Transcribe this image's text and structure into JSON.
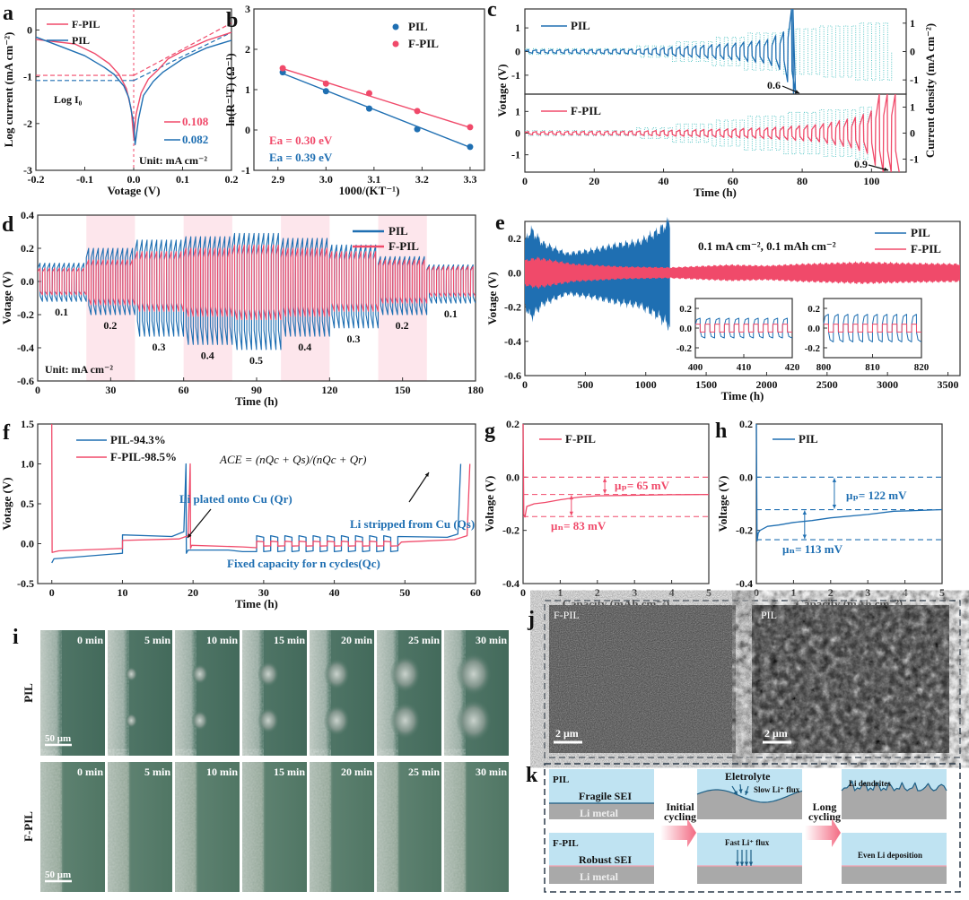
{
  "colors": {
    "pil": "#1f6fb2",
    "fpil": "#f04a6a",
    "current": "#2fb8b8",
    "band": "#fde6ec",
    "elec": "#bfe3f2",
    "metal": "#a9a9a9"
  },
  "panel_labels": {
    "a": "a",
    "b": "b",
    "c": "c",
    "d": "d",
    "e": "e",
    "f": "f",
    "g": "g",
    "h": "h",
    "i": "i",
    "j": "j",
    "k": "k"
  },
  "chart_data": [
    {
      "id": "a",
      "type": "line",
      "xlabel": "Votage (V)",
      "ylabel": "Log current (mA cm⁻²)",
      "xlim": [
        -0.2,
        0.2
      ],
      "ylim": [
        -3,
        0.45
      ],
      "xticks": [
        "-0.2",
        "-0.1",
        "0.0",
        "0.1",
        "0.2"
      ],
      "yticks": [
        "-3",
        "-2",
        "-1",
        "0"
      ],
      "legend": [
        "F-PIL",
        "PIL"
      ],
      "series": [
        {
          "name": "F-PIL",
          "x": [
            -0.2,
            -0.16,
            -0.12,
            -0.08,
            -0.05,
            -0.03,
            -0.015,
            -0.005,
            0.0,
            0.005,
            0.015,
            0.03,
            0.05,
            0.07,
            0.1,
            0.15,
            0.2
          ],
          "y": [
            -0.2,
            -0.25,
            -0.3,
            -0.5,
            -0.72,
            -0.95,
            -1.25,
            -1.7,
            -2.3,
            -1.8,
            -1.35,
            -1.05,
            -0.85,
            -0.62,
            -0.45,
            -0.22,
            -0.05
          ]
        },
        {
          "name": "PIL",
          "x": [
            -0.2,
            -0.15,
            -0.1,
            -0.06,
            -0.04,
            -0.02,
            -0.01,
            0.0,
            0.003,
            0.01,
            0.02,
            0.04,
            0.06,
            0.1,
            0.15,
            0.2
          ],
          "y": [
            -0.15,
            -0.35,
            -0.55,
            -0.8,
            -0.95,
            -1.2,
            -1.45,
            -2.0,
            -2.45,
            -1.9,
            -1.4,
            -1.1,
            -0.9,
            -0.62,
            -0.38,
            -0.22
          ]
        }
      ],
      "tafel": [
        {
          "name": "F-PIL",
          "log_i0": -0.97,
          "anodic_end": 0.15
        },
        {
          "name": "PIL",
          "log_i0": -1.08,
          "anodic_end": -0.05
        }
      ],
      "annotations": {
        "log_i0": "Log I₀",
        "fpil_value": "0.108",
        "pil_value": "0.082",
        "unit": "Unit: mA cm⁻²"
      }
    },
    {
      "id": "b",
      "type": "scatter",
      "xlabel": "1000/(KT⁻¹)",
      "ylabel": "ln(R⁻¹T) (Ω⁻¹)",
      "xlim": [
        2.85,
        3.33
      ],
      "ylim": [
        -1,
        3
      ],
      "xticks": [
        "2.9",
        "3.0",
        "3.1",
        "3.2",
        "3.3"
      ],
      "yticks": [
        "-1",
        "0",
        "1",
        "2",
        "3"
      ],
      "x": [
        2.91,
        3.0,
        3.09,
        3.19,
        3.3
      ],
      "series": [
        {
          "name": "PIL",
          "values": [
            1.43,
            0.96,
            0.53,
            0.02,
            -0.42
          ],
          "fit": [
            1.4,
            -0.43
          ]
        },
        {
          "name": "F-PIL",
          "values": [
            1.53,
            1.15,
            0.91,
            0.47,
            0.07
          ],
          "fit": [
            1.52,
            0.06
          ]
        }
      ],
      "annotations": {
        "ea_fpil": "Ea = 0.30 eV",
        "ea_pil": "Ea = 0.39 eV"
      }
    },
    {
      "id": "c",
      "type": "line",
      "xlabel": "Time (h)",
      "ylabel": "Votage (V)",
      "ylabel_right": "Current density (mA cm⁻²)",
      "xlim": [
        0,
        110
      ],
      "ylim": [
        -1.8,
        1.8
      ],
      "ylim_right": [
        -1.5,
        1.5
      ],
      "xticks": [
        "0",
        "20",
        "40",
        "60",
        "80",
        "100"
      ],
      "yticks": [
        "-1",
        "0",
        "1"
      ],
      "yticks_right": [
        "-1",
        "0",
        "1"
      ],
      "period_h": 2.3,
      "current_steps": [
        [
          0,
          0.1
        ],
        [
          32,
          0.2
        ],
        [
          42,
          0.35
        ],
        [
          53,
          0.5
        ],
        [
          63,
          0.65
        ],
        [
          74,
          0.8
        ],
        [
          84,
          0.9
        ],
        [
          95,
          1.0
        ]
      ],
      "series": [
        {
          "name": "PIL",
          "end_h": 77.3,
          "current_end_h": 105,
          "envelope": [
            [
              0,
              0.07
            ],
            [
              32,
              0.1
            ],
            [
              40,
              0.17
            ],
            [
              50,
              0.25
            ],
            [
              60,
              0.35
            ],
            [
              70,
              0.5
            ],
            [
              75,
              0.85
            ],
            [
              77,
              1.8
            ]
          ]
        },
        {
          "name": "F-PIL",
          "end_h": 108,
          "current_end_h": 100,
          "envelope": [
            [
              0,
              0.07
            ],
            [
              32,
              0.1
            ],
            [
              50,
              0.16
            ],
            [
              70,
              0.25
            ],
            [
              85,
              0.4
            ],
            [
              95,
              0.7
            ],
            [
              100,
              1.0
            ],
            [
              102,
              1.8
            ],
            [
              108,
              1.8
            ]
          ]
        }
      ],
      "annotations": {
        "pil_fail": "0.6",
        "fpil_fail": "0.9"
      }
    },
    {
      "id": "d",
      "type": "line",
      "xlabel": "Time (h)",
      "ylabel": "Votage (V)",
      "xlim": [
        0,
        180
      ],
      "ylim": [
        -0.6,
        0.4
      ],
      "xticks": [
        "0",
        "30",
        "60",
        "90",
        "120",
        "150",
        "180"
      ],
      "yticks": [
        "-0.6",
        "-0.4",
        "-0.2",
        "0.0",
        "0.2",
        "0.4"
      ],
      "legend": [
        "PIL",
        "F-PIL"
      ],
      "rates": [
        "0.1",
        "0.2",
        "0.3",
        "0.4",
        "0.5",
        "0.4",
        "0.3",
        "0.2",
        "0.1"
      ],
      "segment_h": 20,
      "shaded_segments": [
        1,
        3,
        5,
        7
      ],
      "series": [
        {
          "name": "PIL",
          "upper": [
            0.11,
            0.2,
            0.25,
            0.27,
            0.29,
            0.26,
            0.22,
            0.15,
            0.1
          ],
          "lower": [
            -0.12,
            -0.2,
            -0.33,
            -0.38,
            -0.41,
            -0.33,
            -0.28,
            -0.2,
            -0.13
          ]
        },
        {
          "name": "F-PIL",
          "upper": [
            0.08,
            0.13,
            0.18,
            0.2,
            0.22,
            0.2,
            0.18,
            0.13,
            0.09
          ],
          "lower": [
            -0.08,
            -0.14,
            -0.18,
            -0.21,
            -0.23,
            -0.21,
            -0.18,
            -0.13,
            -0.09
          ]
        }
      ],
      "annotations": {
        "unit": "Unit: mA cm⁻²"
      }
    },
    {
      "id": "e",
      "type": "area",
      "xlabel": "Time (h)",
      "ylabel": "Votage (V)",
      "xlim": [
        0,
        3600
      ],
      "ylim": [
        -0.6,
        0.3
      ],
      "xticks": [
        "0",
        "500",
        "1000",
        "1500",
        "2000",
        "2500",
        "3000",
        "3500"
      ],
      "yticks": [
        "-0.6",
        "-0.4",
        "-0.2",
        "0.0",
        "0.2"
      ],
      "legend": [
        "PIL",
        "F-PIL"
      ],
      "condition": "0.1 mA cm⁻², 0.1 mAh cm⁻²",
      "series": [
        {
          "name": "PIL",
          "envelope": [
            [
              0,
              0.18
            ],
            [
              50,
              0.25
            ],
            [
              150,
              0.17
            ],
            [
              350,
              0.11
            ],
            [
              550,
              0.13
            ],
            [
              750,
              0.16
            ],
            [
              950,
              0.18
            ],
            [
              1100,
              0.24
            ],
            [
              1200,
              0.3
            ]
          ]
        },
        {
          "name": "F-PIL",
          "envelope": [
            [
              0,
              0.07
            ],
            [
              100,
              0.085
            ],
            [
              400,
              0.05
            ],
            [
              800,
              0.035
            ],
            [
              1200,
              0.03
            ],
            [
              1700,
              0.045
            ],
            [
              2000,
              0.04
            ],
            [
              2300,
              0.05
            ],
            [
              2800,
              0.06
            ],
            [
              3100,
              0.055
            ],
            [
              3600,
              0.05
            ]
          ]
        }
      ],
      "insets": [
        {
          "xlim": [
            400,
            420
          ],
          "ylim": [
            -0.3,
            0.3
          ],
          "xticks": [
            "400",
            "410",
            "420"
          ],
          "yticks": [
            "-0.2",
            "0.0",
            "0.2"
          ],
          "pil_amp": 0.1,
          "fpil_amp": 0.04
        },
        {
          "xlim": [
            800,
            820
          ],
          "ylim": [
            -0.3,
            0.3
          ],
          "xticks": [
            "800",
            "810",
            "820"
          ],
          "yticks": [
            "-0.2",
            "0.0",
            "0.2"
          ],
          "pil_amp": 0.14,
          "fpil_amp": 0.04
        }
      ]
    },
    {
      "id": "f",
      "type": "line",
      "xlabel": "Time (h)",
      "ylabel": "Votage (V)",
      "xlim": [
        -2,
        60
      ],
      "ylim": [
        -0.5,
        1.5
      ],
      "xticks": [
        "0",
        "10",
        "20",
        "30",
        "40",
        "50",
        "60"
      ],
      "yticks": [
        "-0.5",
        "0.0",
        "0.5",
        "1.0",
        "1.5"
      ],
      "legend": [
        "PIL-94.3%",
        "F-PIL-98.5%"
      ],
      "cycles": {
        "start_h": 29,
        "end_h": 49,
        "count": 10
      },
      "series": [
        {
          "name": "PIL",
          "pre": [
            [
              0,
              -0.24
            ],
            [
              0.3,
              -0.19
            ],
            [
              10,
              -0.12
            ],
            [
              10,
              0.11
            ],
            [
              17,
              0.09
            ],
            [
              18.7,
              0.15
            ],
            [
              19,
              1.0
            ],
            [
              19.05,
              -0.12
            ],
            [
              19.3,
              -0.08
            ],
            [
              25,
              -0.08
            ],
            [
              27,
              -0.1
            ],
            [
              29,
              -0.1
            ]
          ],
          "cycle_amp": 0.1,
          "post": [
            [
              49,
              0.09
            ],
            [
              56,
              0.08
            ],
            [
              57.5,
              0.12
            ],
            [
              57.9,
              1.0
            ]
          ]
        },
        {
          "name": "F-PIL",
          "pre": [
            [
              0,
              1.5
            ],
            [
              0.05,
              -0.11
            ],
            [
              1,
              -0.09
            ],
            [
              10,
              -0.06
            ],
            [
              10,
              0.04
            ],
            [
              18,
              0.06
            ],
            [
              19.3,
              0.1
            ],
            [
              19.6,
              1.0
            ],
            [
              19.65,
              -0.06
            ],
            [
              19.8,
              -0.02
            ],
            [
              27,
              -0.04
            ],
            [
              29,
              -0.05
            ]
          ],
          "cycle_amp": 0.03,
          "post": [
            [
              49.5,
              0.02
            ],
            [
              57,
              0.05
            ],
            [
              58.8,
              0.1
            ],
            [
              59.2,
              1.0
            ]
          ]
        }
      ],
      "annotations": {
        "ace": "ACE = (nQc + Qs)/(nQc + Qr)",
        "plated": "Li plated onto Cu (Qr)",
        "stripped": "Li stripped from Cu (Qs)",
        "fixed": "Fixed capacity for n cycles(Qc)"
      }
    },
    {
      "id": "g",
      "type": "line",
      "xlabel": "Capacity (mAh cm⁻²)",
      "ylabel": "Voltage (V)",
      "xlim": [
        0,
        5
      ],
      "ylim": [
        -0.4,
        0.2
      ],
      "xticks": [
        "0",
        "1",
        "2",
        "3",
        "4",
        "5"
      ],
      "yticks": [
        "-0.4",
        "-0.2",
        "0.0",
        "0.2"
      ],
      "legend": [
        "F-PIL"
      ],
      "series": [
        {
          "name": "F-PIL",
          "x": [
            0,
            0.02,
            0.05,
            0.1,
            0.3,
            0.6,
            1.0,
            1.5,
            2.0,
            3.0,
            4.0,
            5.0
          ],
          "y": [
            0.2,
            -0.14,
            -0.15,
            -0.11,
            -0.1,
            -0.095,
            -0.085,
            -0.075,
            -0.07,
            -0.068,
            -0.066,
            -0.065
          ]
        }
      ],
      "levels": [
        0,
        -0.065,
        -0.148
      ],
      "annotations": {
        "mu_p": "μₚ= 65 mV",
        "mu_n": "μₙ= 83 mV"
      }
    },
    {
      "id": "h",
      "type": "line",
      "xlabel": "Capacity (mAh cm⁻²)",
      "ylabel": "Voltage (V)",
      "xlim": [
        0,
        5
      ],
      "ylim": [
        -0.4,
        0.2
      ],
      "xticks": [
        "0",
        "1",
        "2",
        "3",
        "4",
        "5"
      ],
      "yticks": [
        "-0.4",
        "-0.2",
        "0.0",
        "0.2"
      ],
      "legend": [
        "PIL"
      ],
      "series": [
        {
          "name": "PIL",
          "x": [
            0,
            0.02,
            0.05,
            0.1,
            0.3,
            0.6,
            1.0,
            1.5,
            2.0,
            3.0,
            3.7,
            4.0,
            5.0
          ],
          "y": [
            0.2,
            -0.24,
            -0.21,
            -0.2,
            -0.185,
            -0.18,
            -0.17,
            -0.163,
            -0.153,
            -0.14,
            -0.128,
            -0.127,
            -0.122
          ]
        }
      ],
      "levels": [
        0,
        -0.122,
        -0.235
      ],
      "annotations": {
        "mu_p": "μₚ= 122 mV",
        "mu_n": "μₙ= 113 mV"
      }
    }
  ],
  "panel_i": {
    "rows": [
      "PIL",
      "F-PIL"
    ],
    "times": [
      "0 min",
      "5 min",
      "10 min",
      "15 min",
      "20 min",
      "25 min",
      "30 min"
    ],
    "scale_bar": "50 μm"
  },
  "panel_j": {
    "left_label": "F-PIL",
    "right_label": "PIL",
    "scale_bar": "2 μm"
  },
  "panel_k": {
    "row1": {
      "name": "PIL",
      "sei": "Fragile SEI",
      "metal": "Li metal",
      "electrolyte": "Eletrolyte",
      "flux": "Slow Li⁺ flux",
      "final": "Li dendrites"
    },
    "row2": {
      "name": "F-PIL",
      "sei": "Robust SEI",
      "metal": "Li metal",
      "flux": "Fast Li⁺ flux",
      "final": "Even Li deposition"
    },
    "arrow1": {
      "line1": "Initial",
      "line2": "cycling"
    },
    "arrow2": {
      "line1": "Long",
      "line2": "cycling"
    }
  }
}
